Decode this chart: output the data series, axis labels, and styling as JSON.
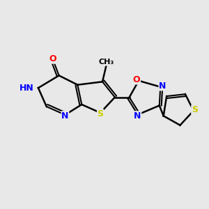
{
  "background_color": "#e8e8e8",
  "bond_color": "#000000",
  "atom_colors": {
    "N": "#0000ff",
    "O": "#ff0000",
    "S": "#cccc00",
    "H": "#008080",
    "C": "#000000"
  },
  "font_size_atom": 9,
  "font_size_H": 8
}
